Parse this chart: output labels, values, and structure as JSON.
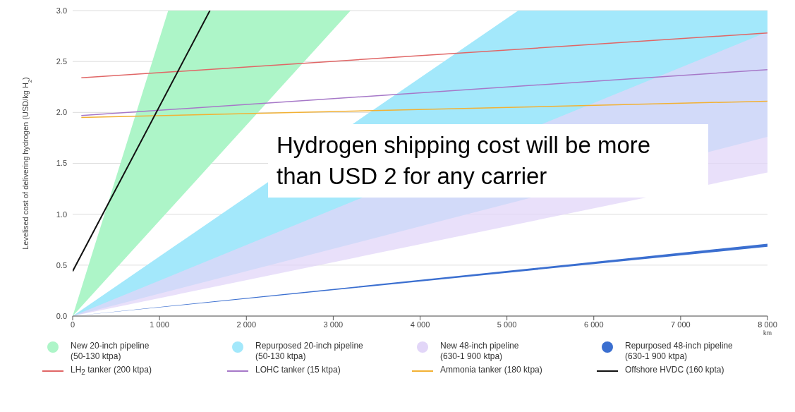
{
  "chart_data": {
    "type": "line",
    "ylabel": "Levelised cost of delivering hydrogen (USD/kg H$_{2}$)",
    "xlabel": "km",
    "xlim": [
      0,
      8000
    ],
    "xticks": [
      0,
      {
        "value": 1000,
        "label": "1 000"
      },
      {
        "value": 2000,
        "label": "2 000"
      },
      {
        "value": 3000,
        "label": "3 000"
      },
      {
        "value": 4000,
        "label": "4 000"
      },
      {
        "value": 5000,
        "label": "5 000"
      },
      {
        "value": 6000,
        "label": "6 000"
      },
      {
        "value": 7000,
        "label": "7 000"
      },
      {
        "value": 8000,
        "label": "8 000"
      }
    ],
    "ylim": [
      0,
      3
    ],
    "yticks": [
      {
        "value": 0,
        "label": "0.0"
      },
      {
        "value": 0.5,
        "label": "0.5"
      },
      {
        "value": 1,
        "label": "1.0"
      },
      {
        "value": 1.5,
        "label": "1.5"
      },
      {
        "value": 2,
        "label": "2.0"
      },
      {
        "value": 2.5,
        "label": "2.5"
      },
      {
        "value": 3,
        "label": "3.0"
      }
    ],
    "grid": "y",
    "legend": "bottom",
    "line_style": "solid",
    "series": [
      {
        "name": "New 20-inch pipeline (50-130 ktpa)",
        "color": "#adf5c8",
        "x": [
          0,
          1100,
          3200
        ],
        "values": [
          null,
          null,
          null
        ],
        "lower": [
          0,
          1.03,
          3
        ],
        "upper": [
          0,
          3,
          3
        ]
      },
      {
        "name": "Repurposed 20-inch pipeline (50-130 ktpa)",
        "color": "#a3e8fb",
        "x": [
          0,
          5130,
          8000
        ],
        "values": [
          null,
          null,
          null
        ],
        "lower": [
          0,
          1.13,
          1.76
        ],
        "upper": [
          0,
          3,
          3
        ]
      },
      {
        "name": "New 48-inch pipeline (630-1 900 ktpa)",
        "color": "#e2d6f8",
        "x": [
          0,
          8000
        ],
        "values": [
          null,
          null
        ],
        "lower": [
          0,
          1.41
        ],
        "upper": [
          0,
          2.79
        ]
      },
      {
        "name": "Repurposed 48-inch pipeline (630-1 900 ktpa)",
        "color": "#3b6fd0",
        "x": [
          0,
          8000
        ],
        "values": [
          null,
          null
        ],
        "lower": [
          0,
          0.68
        ],
        "upper": [
          0,
          0.71
        ]
      },
      {
        "name": "LH$_{2}$ tanker (200 ktpa)",
        "color": "#e06666",
        "x": [
          100,
          8000
        ],
        "values": [
          2.34,
          2.78
        ]
      },
      {
        "name": "LOHC tanker (15 ktpa)",
        "color": "#a678c8",
        "x": [
          100,
          8000
        ],
        "values": [
          1.97,
          2.42
        ]
      },
      {
        "name": "Ammonia tanker (180 ktpa)",
        "color": "#f2b134",
        "x": [
          100,
          8000
        ],
        "values": [
          1.95,
          2.11
        ]
      },
      {
        "name": "Offshore HVDC (160 kpta)",
        "color": "#111111",
        "x": [
          0,
          1580
        ],
        "values": [
          0.44,
          3
        ]
      }
    ],
    "annotations": [
      "Hydrogen shipping cost will be more than USD 2 for any carrier"
    ]
  }
}
